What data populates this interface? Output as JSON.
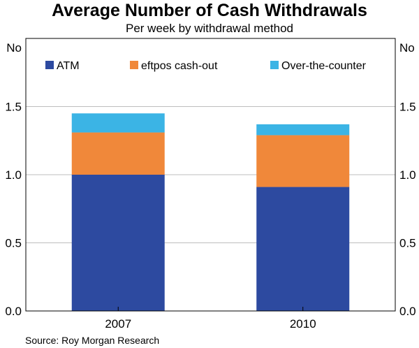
{
  "title": "Average Number of Cash Withdrawals",
  "subtitle": "Per week by withdrawal method",
  "source": "Source: Roy Morgan Research",
  "chart_data": {
    "type": "bar",
    "stacked": true,
    "title": "Average Number of Cash Withdrawals",
    "subtitle": "Per week by withdrawal method",
    "categories": [
      "2007",
      "2010"
    ],
    "series": [
      {
        "name": "ATM",
        "color": "#2d4aa0",
        "values": [
          1.0,
          0.91
        ]
      },
      {
        "name": "eftpos cash-out",
        "color": "#f0883a",
        "values": [
          0.31,
          0.38
        ]
      },
      {
        "name": "Over-the-counter",
        "color": "#3bb4e5",
        "values": [
          0.14,
          0.08
        ]
      }
    ],
    "ylabel_left": "No",
    "ylabel_right": "No",
    "ylim": [
      0,
      2.0
    ],
    "yticks": [
      "0.0",
      "0.5",
      "1.0",
      "1.5"
    ],
    "grid": true,
    "legend": "top"
  }
}
